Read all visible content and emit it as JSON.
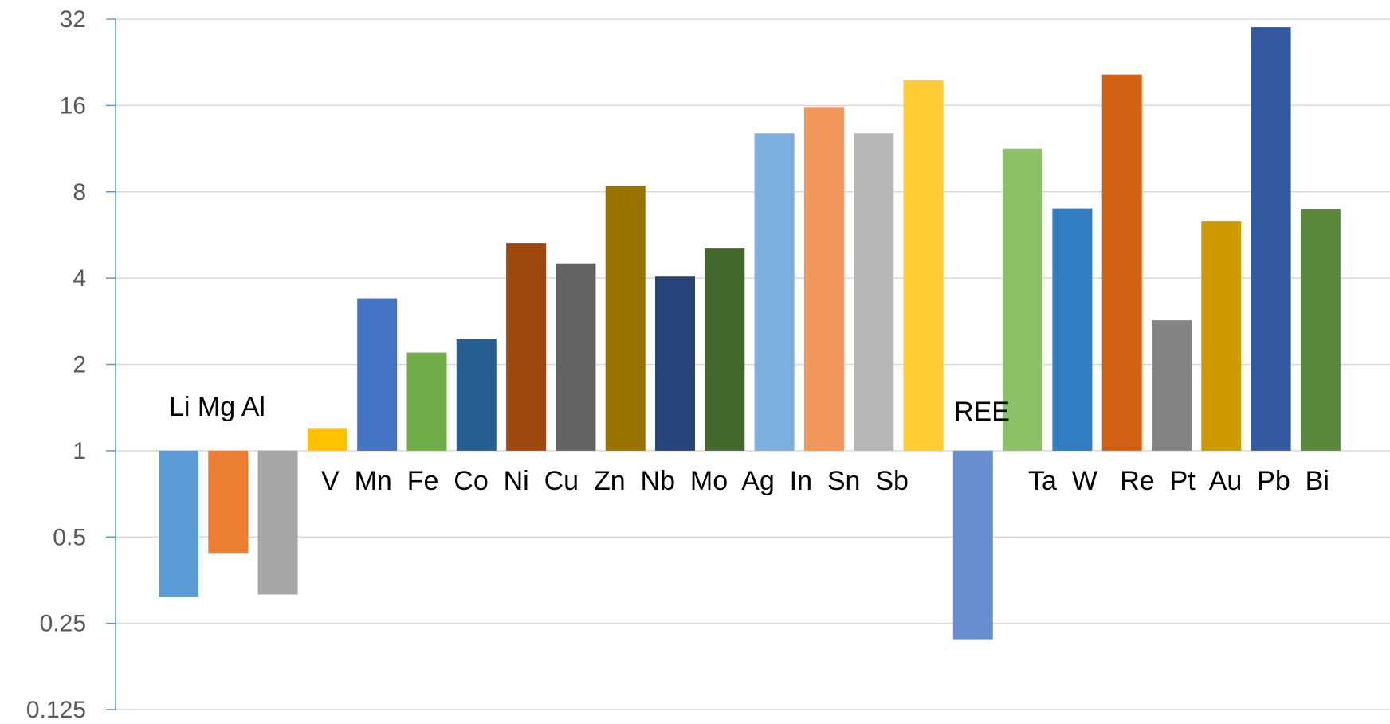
{
  "chart_data": {
    "type": "bar",
    "y_scale": "log2",
    "ylim": [
      0.125,
      32
    ],
    "yticks": [
      "0.125",
      "0.25",
      "0.5",
      "1",
      "2",
      "4",
      "8",
      "16",
      "32"
    ],
    "grid": true,
    "legend": "none",
    "categories": [
      "Li",
      "Mg",
      "Al",
      "V",
      "Mn",
      "Fe",
      "Co",
      "Ni",
      "Cu",
      "Zn",
      "Nb",
      "Mo",
      "Ag",
      "In",
      "Sn",
      "Sb",
      "REE",
      "Ta",
      "W",
      "Re",
      "Pt",
      "Au",
      "Pb",
      "Bi"
    ],
    "values": [
      0.31,
      0.44,
      0.315,
      1.2,
      3.4,
      2.2,
      2.45,
      5.3,
      4.5,
      8.4,
      4.05,
      5.1,
      12.8,
      15.8,
      12.8,
      19.6,
      0.22,
      11.3,
      7.0,
      20.5,
      2.85,
      6.3,
      30.0,
      6.95
    ],
    "colors": [
      "#5B9BD5",
      "#ED7D31",
      "#A5A5A5",
      "#FFC000",
      "#4472C4",
      "#70AD47",
      "#255E91",
      "#9E480E",
      "#636363",
      "#997300",
      "#264478",
      "#43682B",
      "#7CAFDD",
      "#F1975A",
      "#B7B7B7",
      "#FFCD33",
      "#698ED0",
      "#8CC168",
      "#327DC2",
      "#D26012",
      "#848484",
      "#CC9A00",
      "#335AA1",
      "#5A8A39"
    ],
    "labels": [
      {
        "text": "Li Mg Al"
      },
      {
        "text": "V  Mn  Fe  Co  Ni  Cu  Zn  Nb  Mo  Ag  In  Sn  Sb"
      },
      {
        "text": "REE"
      },
      {
        "text": "Ta  W   Re  Pt  Au  Pb  Bi"
      }
    ]
  }
}
